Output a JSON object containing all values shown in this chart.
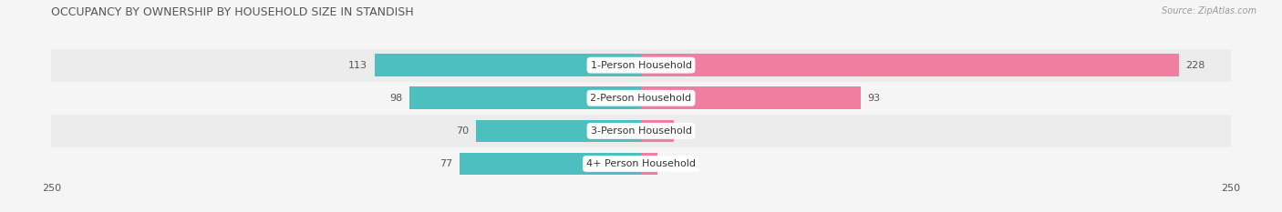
{
  "title": "OCCUPANCY BY OWNERSHIP BY HOUSEHOLD SIZE IN STANDISH",
  "source": "Source: ZipAtlas.com",
  "categories": [
    "1-Person Household",
    "2-Person Household",
    "3-Person Household",
    "4+ Person Household"
  ],
  "owner_values": [
    113,
    98,
    70,
    77
  ],
  "renter_values": [
    228,
    93,
    14,
    7
  ],
  "owner_color": "#4DBFBE",
  "renter_color": "#F07EA0",
  "max_val": 250,
  "background_color": "#f5f5f5",
  "row_colors": [
    "#ececec",
    "#f5f5f5"
  ],
  "title_fontsize": 9,
  "label_fontsize": 8,
  "value_fontsize": 8,
  "tick_fontsize": 8,
  "legend_fontsize": 8,
  "source_fontsize": 7
}
